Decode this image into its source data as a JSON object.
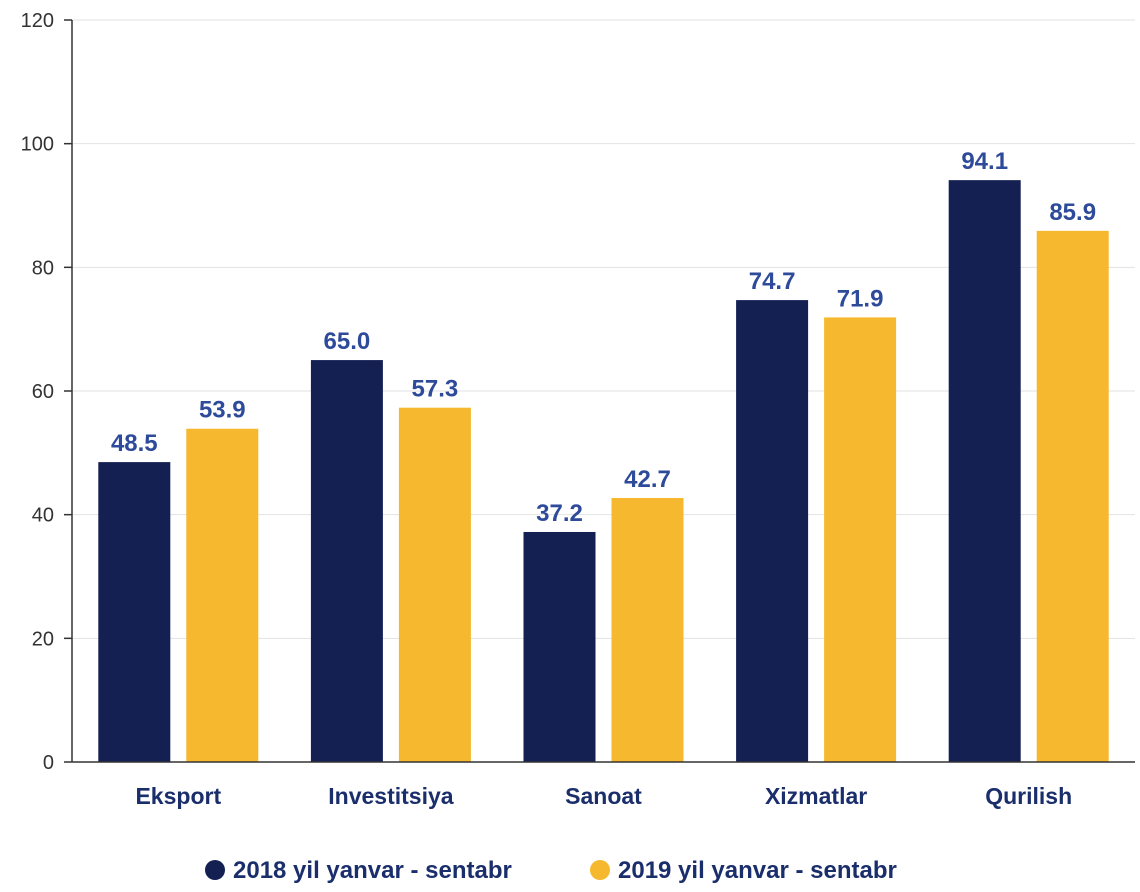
{
  "chart_data": {
    "type": "bar",
    "categories": [
      "Eksport",
      "Investitsiya",
      "Sanoat",
      "Xizmatlar",
      "Qurilish"
    ],
    "series": [
      {
        "name": "2018 yil yanvar - sentabr",
        "values": [
          48.5,
          65.0,
          37.2,
          74.7,
          94.1
        ],
        "labels": [
          "48.5",
          "65.0",
          "37.2",
          "74.7",
          "94.1"
        ],
        "color": "#141f52"
      },
      {
        "name": "2019 yil yanvar - sentabr",
        "values": [
          53.9,
          57.3,
          42.7,
          71.9,
          85.9
        ],
        "labels": [
          "53.9",
          "57.3",
          "42.7",
          "71.9",
          "85.9"
        ],
        "color": "#f5b82e"
      }
    ],
    "ylim": [
      0,
      120
    ],
    "yticks": [
      "0",
      "20",
      "40",
      "60",
      "80",
      "100",
      "120"
    ],
    "grid": true,
    "legend_position": "bottom-center",
    "title": "",
    "xlabel": "",
    "ylabel": ""
  }
}
